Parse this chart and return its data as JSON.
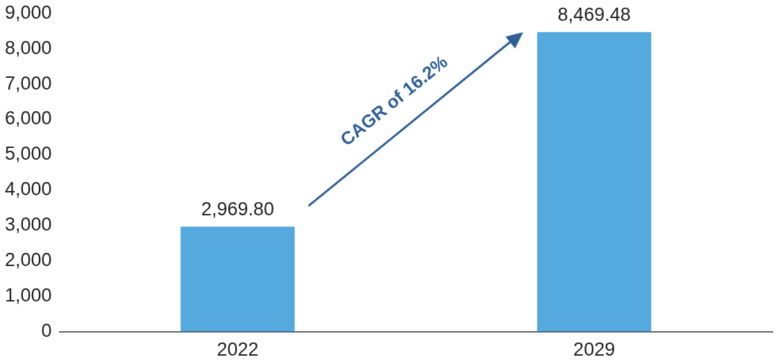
{
  "chart_data": {
    "type": "bar",
    "categories": [
      "2022",
      "2029"
    ],
    "values": [
      2969.8,
      8469.48
    ],
    "color": "#54a9de",
    "value_labels": [
      "2,969.80",
      "8,469.48"
    ],
    "ylim": [
      0,
      9000
    ],
    "yticks": [
      {
        "value": 0,
        "label": "0"
      },
      {
        "value": 1000,
        "label": "1,000"
      },
      {
        "value": 2000,
        "label": "2,000"
      },
      {
        "value": 3000,
        "label": "3,000"
      },
      {
        "value": 4000,
        "label": "4,000"
      },
      {
        "value": 5000,
        "label": "5,000"
      },
      {
        "value": 6000,
        "label": "6,000"
      },
      {
        "value": 7000,
        "label": "7,000"
      },
      {
        "value": 8000,
        "label": "8,000"
      },
      {
        "value": 9000,
        "label": "9,000"
      }
    ],
    "grid": false,
    "legend": false,
    "annotations": [
      "CAGR of 16.2%"
    ]
  }
}
